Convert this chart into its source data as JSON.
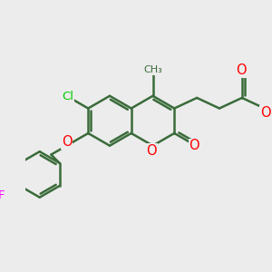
{
  "bg_color": "#ececec",
  "bond_color": "#3a6b3a",
  "bond_width": 1.8,
  "atom_colors": {
    "O": "#ff0000",
    "Cl": "#00cc00",
    "F": "#ff00ff",
    "C": "#3a6b3a"
  },
  "font_size": 9.5,
  "figsize": [
    3.0,
    3.0
  ],
  "dpi": 100,
  "BL": 0.36
}
